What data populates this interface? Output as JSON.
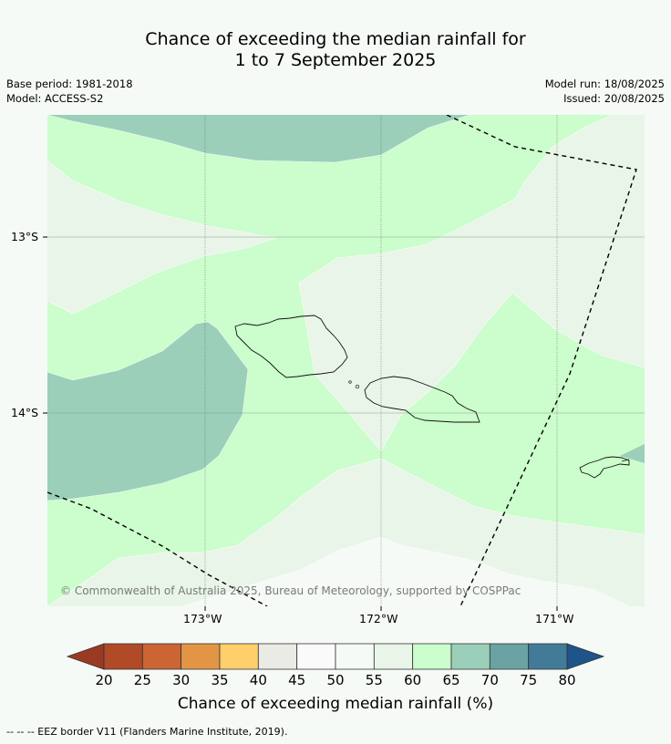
{
  "title_line1": "Chance of exceeding the median rainfall for",
  "title_line2": "1 to 7 September 2025",
  "base_period": "Base period: 1981-2018",
  "model": "Model: ACCESS-S2",
  "model_run": "Model run: 18/08/2025",
  "issued": "Issued: 20/08/2025",
  "lat_labels": [
    "13°S",
    "14°S"
  ],
  "lon_labels": [
    "173°W",
    "172°W",
    "171°W"
  ],
  "copyright": "© Commonwealth of Australia 2025, Bureau of Meteorology, supported by COSPPac",
  "colorbar": {
    "ticks": [
      "20",
      "25",
      "30",
      "35",
      "40",
      "45",
      "50",
      "55",
      "60",
      "65",
      "70",
      "75",
      "80"
    ],
    "colors": [
      "#b04a27",
      "#cc6534",
      "#e39546",
      "#fecf6a",
      "#ebebe6",
      "#fafafa",
      "#f5faf6",
      "#e9f5e9",
      "#ccfdcc",
      "#9bcfba",
      "#6ba3a4",
      "#427b98"
    ],
    "under_color": "#9b3a22",
    "over_color": "#1f548a",
    "title": "Chance of exceeding median rainfall (%)"
  },
  "legend_footer": "--  --  -- EEZ border V11 (Flanders Marine Institute, 2019)."
}
